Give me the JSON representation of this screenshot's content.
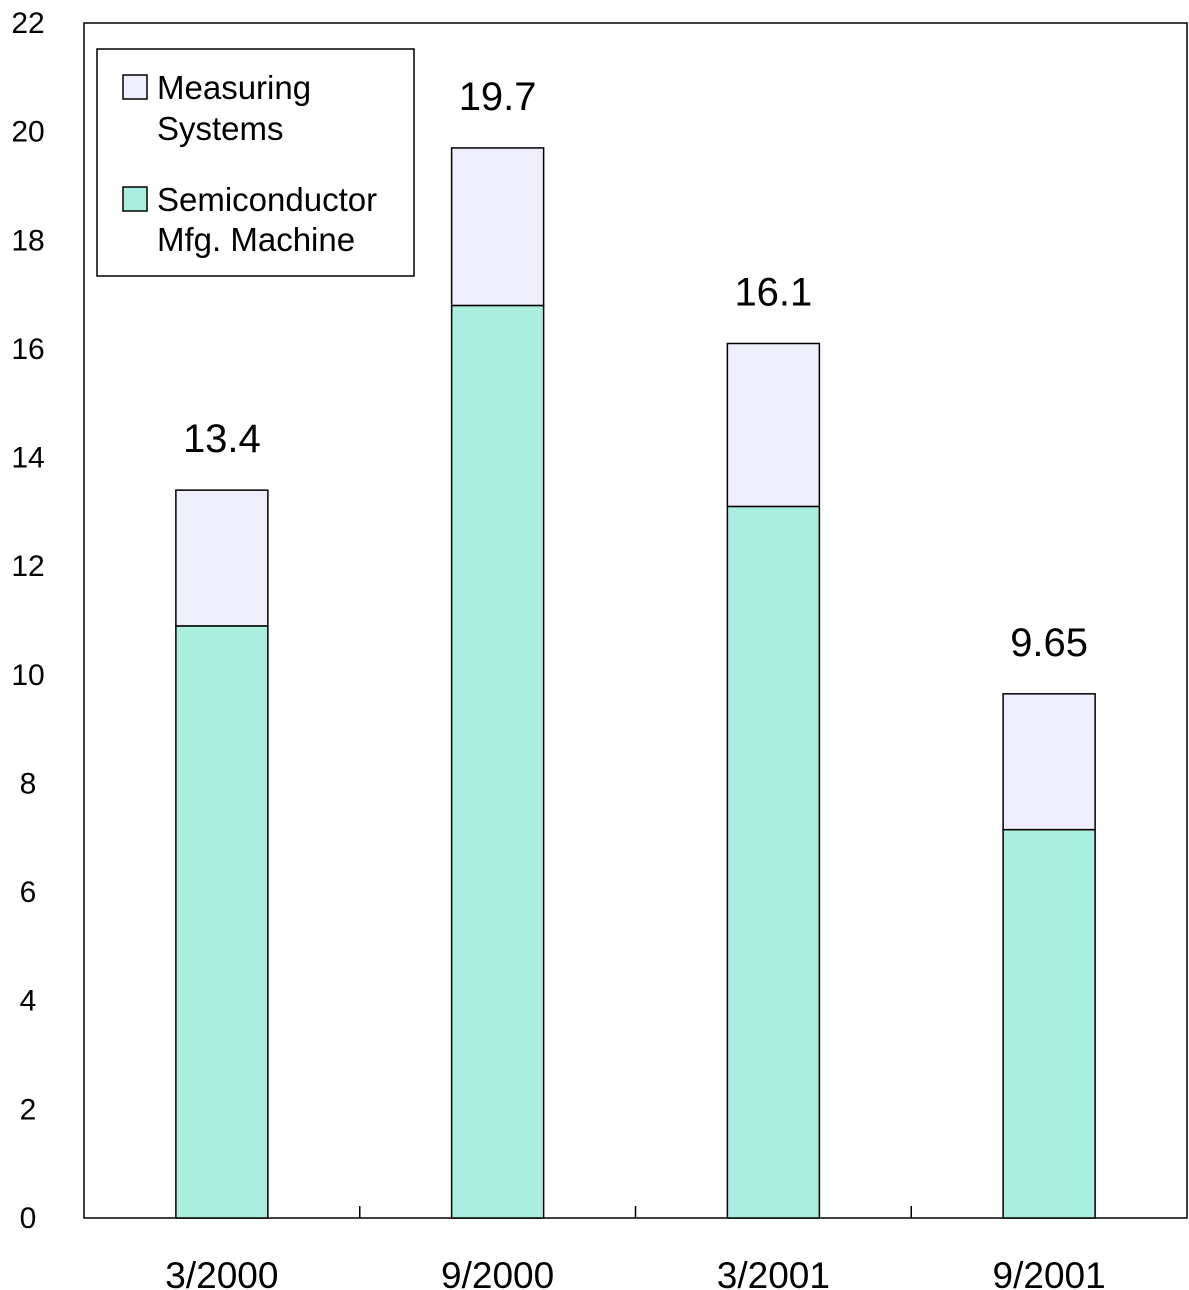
{
  "chart_data": {
    "type": "bar",
    "stacked": true,
    "categories": [
      "3/2000",
      "9/2000",
      "3/2001",
      "9/2001"
    ],
    "series": [
      {
        "name": "Semiconductor Mfg. Machine",
        "name_lines": [
          "Semiconductor",
          "Mfg. Machine"
        ],
        "color": "#aaeedd",
        "values": [
          10.9,
          16.8,
          13.1,
          7.15
        ]
      },
      {
        "name": "Measuring Systems",
        "name_lines": [
          "Measuring",
          "Systems"
        ],
        "color": "#eeeefc",
        "values": [
          2.5,
          2.9,
          3.0,
          2.5
        ]
      }
    ],
    "totals": [
      "13.4",
      "19.7",
      "16.1",
      "9.65"
    ],
    "yticks": [
      "0",
      "2",
      "4",
      "6",
      "8",
      "10",
      "12",
      "14",
      "16",
      "18",
      "20",
      "22"
    ],
    "ylim": [
      0,
      22
    ],
    "grid": false,
    "legend_position": "top-left"
  }
}
